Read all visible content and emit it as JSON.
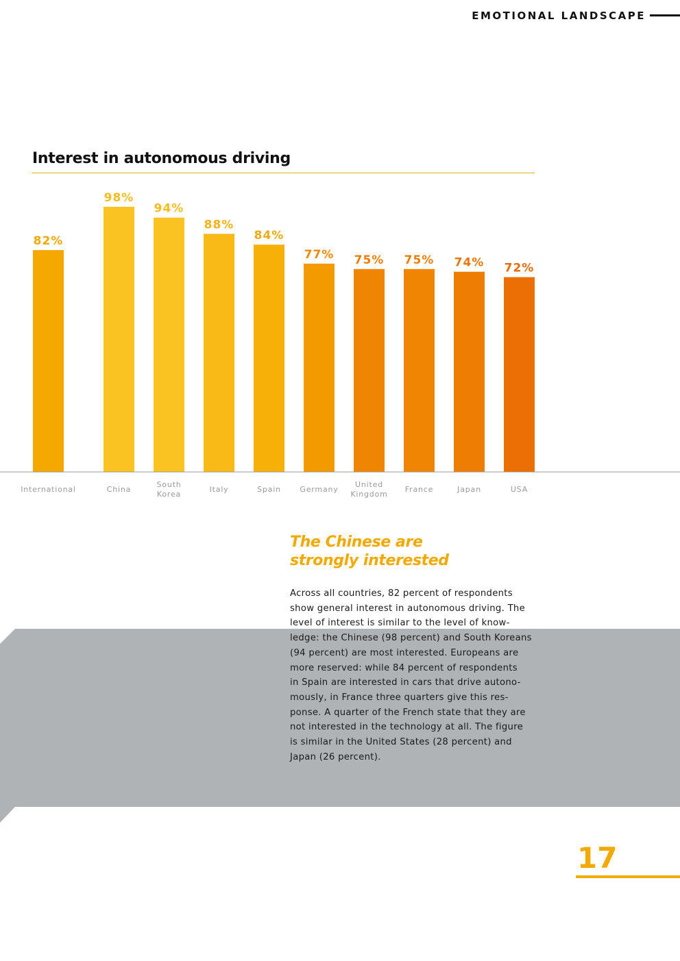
{
  "header": {
    "section_title": "EMOTIONAL LANDSCAPE"
  },
  "chart_data": {
    "type": "bar",
    "title": "Interest in autonomous driving",
    "xlabel": "",
    "ylabel": "",
    "ylim": [
      0,
      100
    ],
    "unit": "%",
    "categories": [
      [
        "International"
      ],
      [
        "China"
      ],
      [
        "South",
        "Korea"
      ],
      [
        "Italy"
      ],
      [
        "Spain"
      ],
      [
        "Germany"
      ],
      [
        "United",
        "Kingdom"
      ],
      [
        "France"
      ],
      [
        "Japan"
      ],
      [
        "USA"
      ]
    ],
    "values": [
      82,
      98,
      94,
      88,
      84,
      77,
      75,
      75,
      74,
      72
    ],
    "value_labels": [
      "82%",
      "98%",
      "94%",
      "88%",
      "84%",
      "77%",
      "75%",
      "75%",
      "74%",
      "72%"
    ],
    "bar_colors": [
      "#f5a800",
      "#fbc322",
      "#fbc322",
      "#f9ba18",
      "#f7b008",
      "#f29a00",
      "#ef8503",
      "#ef8503",
      "#ee7d04",
      "#eb6f04"
    ],
    "label_colors": [
      "#f2a900",
      "#f6bd20",
      "#f6bd20",
      "#f4b31a",
      "#f1aa12",
      "#ee8a08",
      "#ec7e08",
      "#ec7e08",
      "#ea7607",
      "#e86a05"
    ],
    "grid": false
  },
  "article": {
    "heading_lines": [
      "The Chinese are",
      "strongly interested"
    ],
    "body_lines": [
      "Across all countries, 82 percent of respondents",
      "show general interest in autonomous driving. The",
      "level of interest is similar to the level of know-",
      "ledge: the Chinese (98 percent) and South Koreans",
      "(94 percent) are most interested. Europeans are",
      "more reserved: while 84 percent of respondents",
      "in Spain are interested in cars that drive autono-",
      "mously, in France three quarters give this res-",
      "ponse. A quarter of the French state that they are",
      "not interested in the technology at all. The figure",
      "is similar in the United States (28 percent) and",
      "Japan (26 percent)."
    ]
  },
  "footer": {
    "page_number": "17"
  }
}
